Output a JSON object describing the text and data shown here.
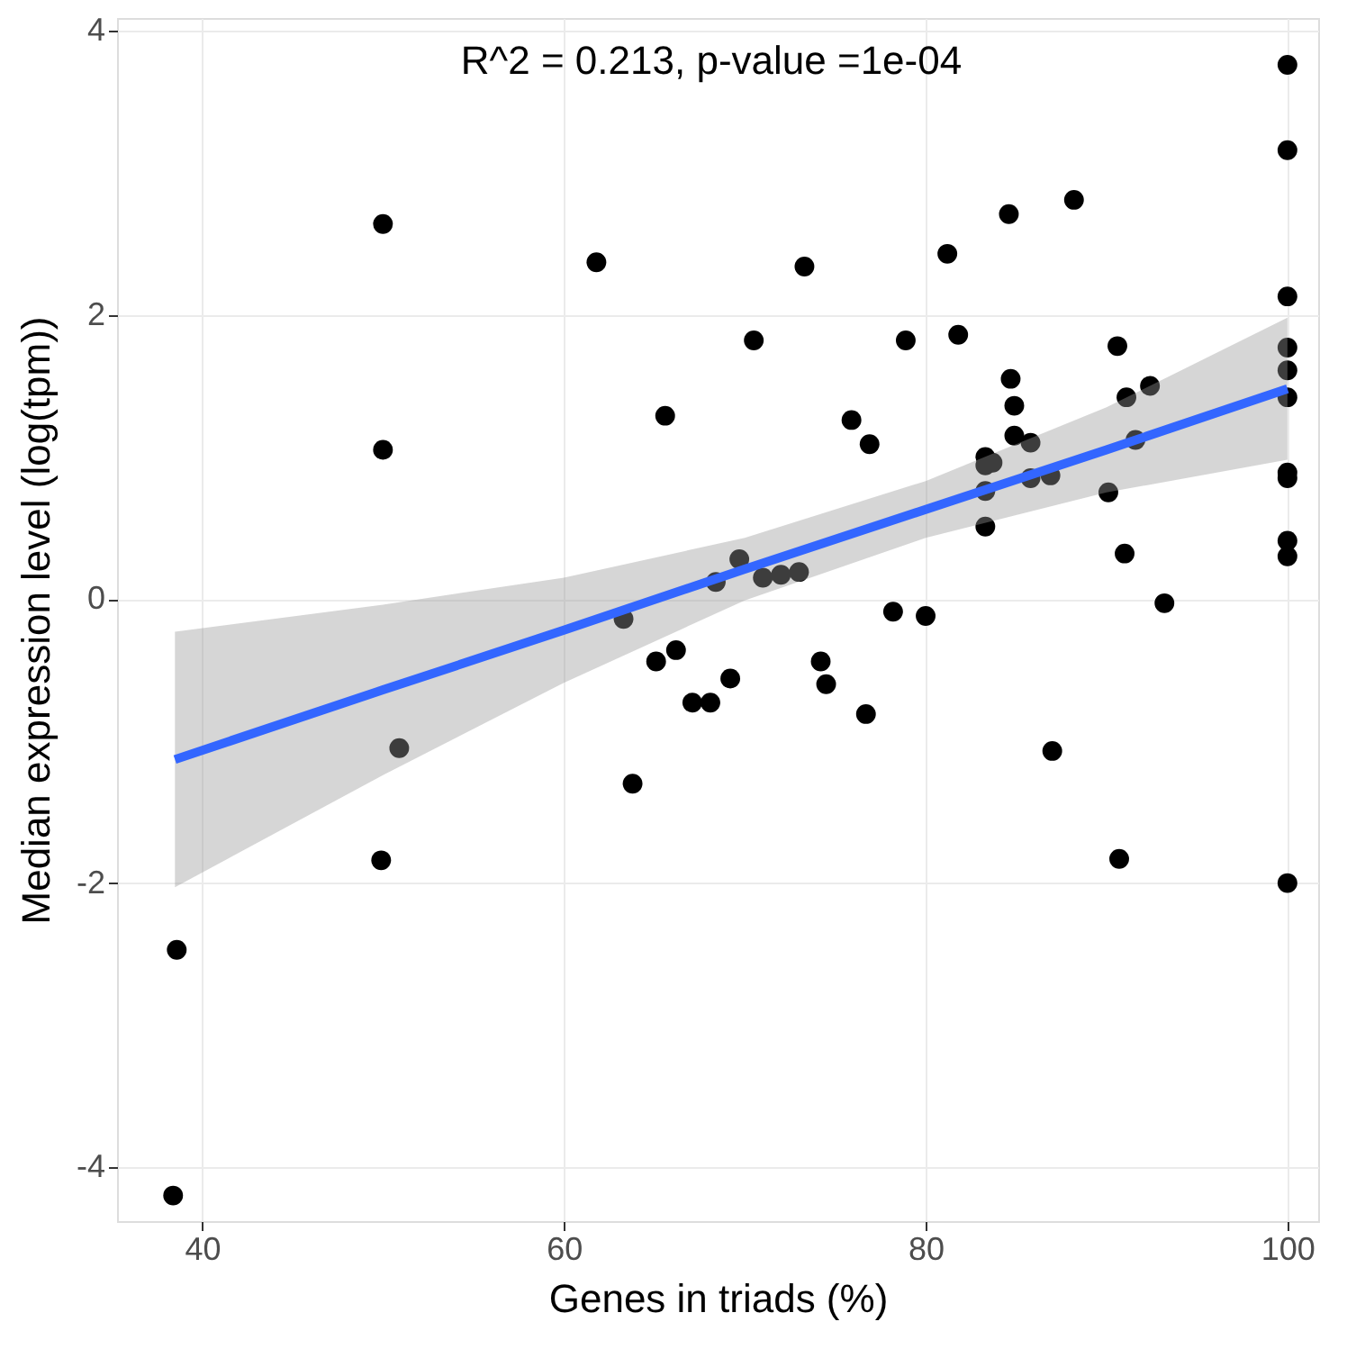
{
  "chart_data": {
    "type": "scatter",
    "xlabel": "Genes in triads (%)",
    "ylabel": "Median expression level (log(tpm))",
    "annotations": [
      "R^2 = 0.213,  p-value =1e-04"
    ],
    "xlim": [
      35.3,
      101.7
    ],
    "xticks": [
      40,
      60,
      80,
      100
    ],
    "ylim": [
      -4.38,
      4.09
    ],
    "yticks": [
      -4,
      -2,
      0,
      2,
      4
    ],
    "grid": true,
    "series": [
      {
        "marker": "circle",
        "color": "#000000",
        "x": [
          50,
          61.8,
          65.6,
          50,
          100,
          100,
          88.2,
          84.6,
          73.3,
          81.2,
          70.5,
          78.9,
          81.8,
          90.6,
          100,
          100,
          100,
          100,
          92.4,
          91.1,
          84.7,
          84.9,
          75.9,
          76.9,
          84.9,
          85.8,
          91.6,
          83.3,
          83.7,
          83.3,
          85.8,
          86.9,
          83.3,
          90.1,
          100,
          100,
          83.3,
          91.0,
          100,
          100,
          69.7,
          71.0,
          72.0,
          73.0,
          68.4,
          78.2,
          80.0,
          63.3,
          65.1,
          66.2,
          67.1,
          68.1,
          50.9,
          63.8,
          49.9,
          38.6,
          38.4,
          69.2,
          93.2,
          74.2,
          74.5,
          76.7,
          87.0,
          90.7,
          100
        ],
        "values": [
          2.64,
          2.37,
          1.29,
          1.05,
          3.76,
          3.16,
          2.81,
          2.71,
          2.34,
          2.43,
          1.82,
          1.82,
          1.86,
          1.78,
          2.13,
          1.77,
          1.61,
          1.42,
          1.5,
          1.42,
          1.55,
          1.36,
          1.26,
          1.09,
          1.15,
          1.1,
          1.12,
          1.0,
          0.96,
          0.94,
          0.85,
          0.87,
          0.76,
          0.75,
          0.89,
          0.85,
          0.51,
          0.32,
          0.41,
          0.3,
          0.28,
          0.15,
          0.17,
          0.19,
          0.12,
          -0.09,
          -0.12,
          -0.14,
          -0.44,
          -0.36,
          -0.73,
          -0.73,
          -1.05,
          -1.3,
          -1.84,
          -2.47,
          -4.2,
          -0.56,
          -0.03,
          -0.44,
          -0.6,
          -0.81,
          -1.07,
          -1.83,
          -2.0
        ]
      },
      {
        "type": "line",
        "color": "#3366ff",
        "x": [
          38.5,
          50,
          60,
          70,
          80,
          90,
          100
        ],
        "values": [
          -1.13,
          -0.64,
          -0.22,
          0.21,
          0.63,
          1.05,
          1.48
        ],
        "lower": [
          -2.03,
          -1.24,
          -0.59,
          -0.01,
          0.43,
          0.75,
          0.98
        ],
        "upper": [
          -0.23,
          -0.04,
          0.15,
          0.43,
          0.83,
          1.35,
          1.98
        ]
      }
    ]
  }
}
